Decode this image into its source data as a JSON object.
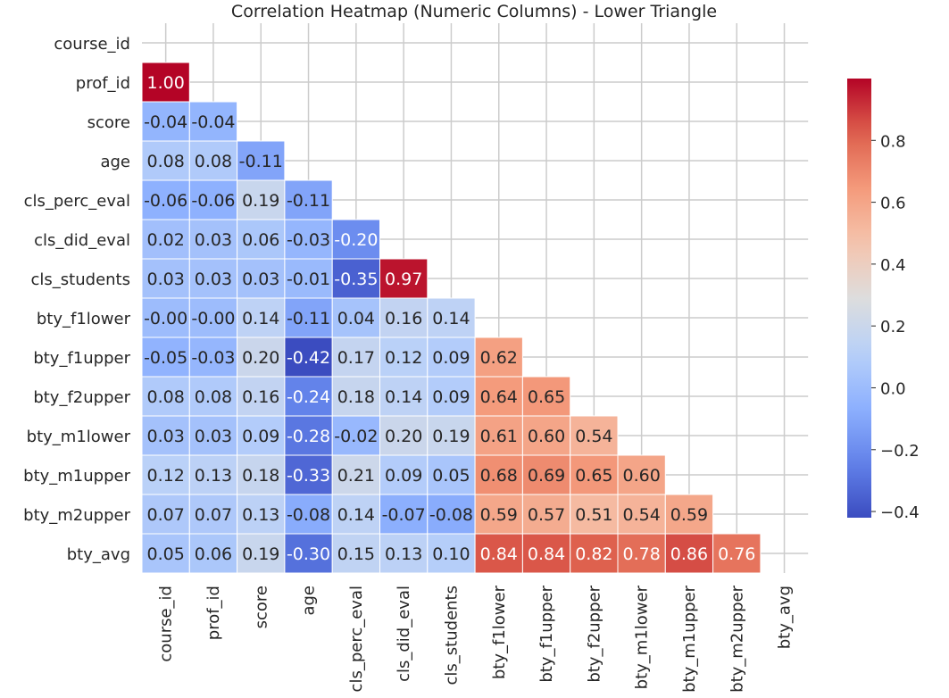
{
  "chart_data": {
    "type": "heatmap",
    "title": "Correlation Heatmap (Numeric Columns) - Lower Triangle",
    "xlabel": "",
    "ylabel": "",
    "mask": "upper-triangle-including-diagonal",
    "labels": [
      "course_id",
      "prof_id",
      "score",
      "age",
      "cls_perc_eval",
      "cls_did_eval",
      "cls_students",
      "bty_f1lower",
      "bty_f1upper",
      "bty_f2upper",
      "bty_m1lower",
      "bty_m1upper",
      "bty_m2upper",
      "bty_avg"
    ],
    "values": [
      [],
      [
        1.0
      ],
      [
        -0.04,
        -0.04
      ],
      [
        0.08,
        0.08,
        -0.11
      ],
      [
        -0.06,
        -0.06,
        0.19,
        -0.11
      ],
      [
        0.02,
        0.03,
        0.06,
        -0.03,
        -0.2
      ],
      [
        0.03,
        0.03,
        0.03,
        -0.01,
        -0.35,
        0.97
      ],
      [
        -0.0,
        -0.0,
        0.14,
        -0.11,
        0.04,
        0.16,
        0.14
      ],
      [
        -0.05,
        -0.03,
        0.2,
        -0.42,
        0.17,
        0.12,
        0.09,
        0.62
      ],
      [
        0.08,
        0.08,
        0.16,
        -0.24,
        0.18,
        0.14,
        0.09,
        0.64,
        0.65
      ],
      [
        0.03,
        0.03,
        0.09,
        -0.28,
        -0.02,
        0.2,
        0.19,
        0.61,
        0.6,
        0.54
      ],
      [
        0.12,
        0.13,
        0.18,
        -0.33,
        0.21,
        0.09,
        0.05,
        0.68,
        0.69,
        0.65,
        0.6
      ],
      [
        0.07,
        0.07,
        0.13,
        -0.08,
        0.14,
        -0.07,
        -0.08,
        0.59,
        0.57,
        0.51,
        0.54,
        0.59
      ],
      [
        0.05,
        0.06,
        0.19,
        -0.3,
        0.15,
        0.13,
        0.1,
        0.84,
        0.84,
        0.82,
        0.78,
        0.86,
        0.76
      ]
    ],
    "value_labels": [
      [],
      [
        "1.00"
      ],
      [
        "-0.04",
        "-0.04"
      ],
      [
        "0.08",
        "0.08",
        "-0.11"
      ],
      [
        "-0.06",
        "-0.06",
        "0.19",
        "-0.11"
      ],
      [
        "0.02",
        "0.03",
        "0.06",
        "-0.03",
        "-0.20"
      ],
      [
        "0.03",
        "0.03",
        "0.03",
        "-0.01",
        "-0.35",
        "0.97"
      ],
      [
        "-0.00",
        "-0.00",
        "0.14",
        "-0.11",
        "0.04",
        "0.16",
        "0.14"
      ],
      [
        "-0.05",
        "-0.03",
        "0.20",
        "-0.42",
        "0.17",
        "0.12",
        "0.09",
        "0.62"
      ],
      [
        "0.08",
        "0.08",
        "0.16",
        "-0.24",
        "0.18",
        "0.14",
        "0.09",
        "0.64",
        "0.65"
      ],
      [
        "0.03",
        "0.03",
        "0.09",
        "-0.28",
        "-0.02",
        "0.20",
        "0.19",
        "0.61",
        "0.60",
        "0.54"
      ],
      [
        "0.12",
        "0.13",
        "0.18",
        "-0.33",
        "0.21",
        "0.09",
        "0.05",
        "0.68",
        "0.69",
        "0.65",
        "0.60"
      ],
      [
        "0.07",
        "0.07",
        "0.13",
        "-0.08",
        "0.14",
        "-0.07",
        "-0.08",
        "0.59",
        "0.57",
        "0.51",
        "0.54",
        "0.59"
      ],
      [
        "0.05",
        "0.06",
        "0.19",
        "-0.30",
        "0.15",
        "0.13",
        "0.10",
        "0.84",
        "0.84",
        "0.82",
        "0.78",
        "0.86",
        "0.76"
      ]
    ],
    "colormap": "coolwarm",
    "colorbar": {
      "vmin": -0.42,
      "vmax": 1.0,
      "ticks": [
        -0.4,
        -0.2,
        0.0,
        0.2,
        0.4,
        0.6,
        0.8
      ],
      "tick_labels": [
        "−0.4",
        "−0.2",
        "0.0",
        "0.2",
        "0.4",
        "0.6",
        "0.8"
      ]
    },
    "grid": true,
    "legend": "right"
  },
  "colors": {
    "background": "#ffffff",
    "grid": "#cccccc",
    "cell_border": "#ffffff",
    "text_dark": "#262626",
    "text_light": "#ffffff"
  }
}
